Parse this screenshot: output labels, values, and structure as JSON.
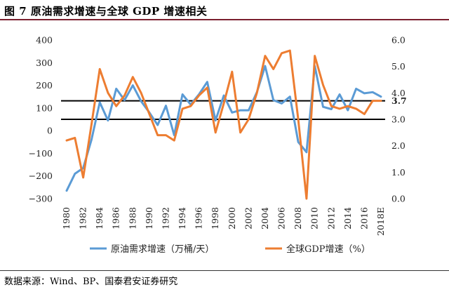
{
  "title": "图 7 原油需求增速与全球 GDP 增速相关",
  "source": "数据来源：Wind、BP、国泰君安证券研究",
  "chart_data": {
    "type": "line",
    "categories": [
      "1980",
      "1981",
      "1982",
      "1983",
      "1984",
      "1985",
      "1986",
      "1987",
      "1988",
      "1989",
      "1990",
      "1991",
      "1992",
      "1993",
      "1994",
      "1995",
      "1996",
      "1997",
      "1998",
      "1999",
      "2000",
      "2001",
      "2002",
      "2003",
      "2004",
      "2005",
      "2006",
      "2007",
      "2008",
      "2009",
      "2010",
      "2011",
      "2012",
      "2013",
      "2014",
      "2015",
      "2016",
      "2017",
      "2018E"
    ],
    "x_tick_labels": [
      "1980",
      "1982",
      "1984",
      "1986",
      "1988",
      "1990",
      "1992",
      "1994",
      "1996",
      "1998",
      "2000",
      "2002",
      "2004",
      "2006",
      "2008",
      "2010",
      "2012",
      "2014",
      "2016",
      "2018E"
    ],
    "left_axis": {
      "ylim": [
        -300,
        400
      ],
      "ticks": [
        "−300",
        "−200",
        "−100",
        "0",
        "100",
        "200",
        "300",
        "400"
      ]
    },
    "right_axis": {
      "ylim": [
        0.0,
        6.0
      ],
      "ticks": [
        "0.0",
        "1.0",
        "2.0",
        "3.0",
        "4.0",
        "5.0",
        "6.0"
      ],
      "highlight_label": "3.7"
    },
    "reference_lines": [
      {
        "axis": "right",
        "value": 3.0
      },
      {
        "axis": "right",
        "value": 3.7
      }
    ],
    "legend_position": "bottom",
    "series": [
      {
        "name": "原油需求增速（万桶/天）",
        "axis": "left",
        "color": "#5b9bd5",
        "values": [
          -265,
          -190,
          -165,
          -40,
          125,
          45,
          185,
          135,
          200,
          130,
          80,
          25,
          110,
          -20,
          160,
          115,
          160,
          215,
          45,
          155,
          80,
          90,
          90,
          170,
          285,
          135,
          120,
          150,
          -50,
          -95,
          285,
          105,
          95,
          160,
          90,
          185,
          165,
          170,
          150
        ]
      },
      {
        "name": "全球GDP增速（%）",
        "axis": "right",
        "color": "#ed7d31",
        "values": [
          2.2,
          2.3,
          0.8,
          2.8,
          4.9,
          4.0,
          3.5,
          3.9,
          4.6,
          4.0,
          3.2,
          2.4,
          2.4,
          2.2,
          3.4,
          3.5,
          3.9,
          4.2,
          2.5,
          3.6,
          4.8,
          2.5,
          3.0,
          4.0,
          5.4,
          4.9,
          5.5,
          5.6,
          3.0,
          0.0,
          5.4,
          4.3,
          3.5,
          3.4,
          3.5,
          3.4,
          3.2,
          3.7,
          3.7
        ]
      }
    ]
  }
}
